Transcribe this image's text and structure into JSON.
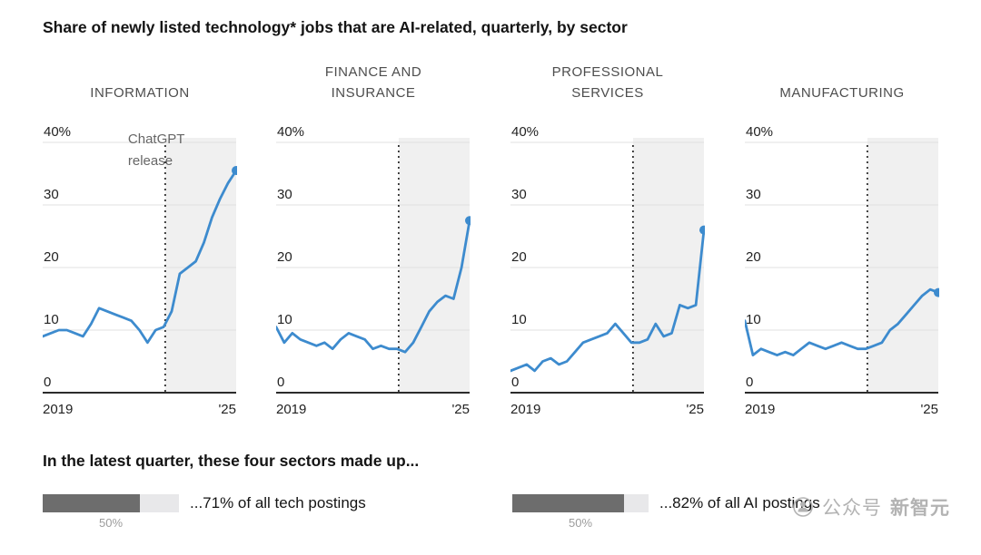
{
  "title": "Share of newly listed technology* jobs that are AI-related, quarterly, by sector",
  "colors": {
    "line": "#3d8bce",
    "end_dot": "#3d8bce",
    "post_event_shade": "#f0f0f0",
    "gridline": "#e0e0e0",
    "axis": "#2b2b2b",
    "event_line": "#1a1a1a",
    "tick_text": "#222222",
    "annotation_text": "#666666",
    "bar_fill": "#6d6d6d",
    "bar_track": "#e8e8ea"
  },
  "chart_data": {
    "type": "line",
    "title": "Share of newly listed technology* jobs that are AI-related, quarterly, by sector",
    "unit": "%",
    "ylim": [
      0,
      40
    ],
    "yticks": [
      {
        "value": 40,
        "label": "40%"
      },
      {
        "value": 30,
        "label": "30"
      },
      {
        "value": 20,
        "label": "20"
      },
      {
        "value": 10,
        "label": "10"
      },
      {
        "value": 0,
        "label": "0"
      }
    ],
    "x_axis": {
      "start_label": "2019",
      "end_label": "'25",
      "points_per_series": 25,
      "frequency": "quarterly"
    },
    "event_line": {
      "label": "ChatGPT release",
      "x_index": 15.2,
      "annotation_lines": [
        "ChatGPT",
        "release"
      ],
      "annotation_panel_index": 0
    },
    "panels": [
      {
        "title_lines": [
          "INFORMATION"
        ],
        "values": [
          9,
          9.5,
          10,
          10,
          9.5,
          9,
          11,
          13.5,
          13,
          12.5,
          12,
          11.5,
          10,
          8,
          10,
          10.5,
          13,
          19,
          20,
          21,
          24,
          28,
          31,
          33.5,
          35.5
        ],
        "end_value": 35.5
      },
      {
        "title_lines": [
          "FINANCE AND",
          "INSURANCE"
        ],
        "values": [
          10.5,
          8,
          9.5,
          8.5,
          8,
          7.5,
          8,
          7,
          8.5,
          9.5,
          9,
          8.5,
          7,
          7.5,
          7,
          7,
          6.5,
          8,
          10.5,
          13,
          14.5,
          15.5,
          15,
          20,
          27.5
        ],
        "end_value": 27.5
      },
      {
        "title_lines": [
          "PROFESSIONAL",
          "SERVICES"
        ],
        "values": [
          3.5,
          4,
          4.5,
          3.5,
          5,
          5.5,
          4.5,
          5,
          6.5,
          8,
          8.5,
          9,
          9.5,
          11,
          9.5,
          8,
          8,
          8.5,
          11,
          9,
          9.5,
          14,
          13.5,
          14,
          26
        ],
        "end_value": 26
      },
      {
        "title_lines": [
          "MANUFACTURING"
        ],
        "values": [
          11.5,
          6,
          7,
          6.5,
          6,
          6.5,
          6,
          7,
          8,
          7.5,
          7,
          7.5,
          8,
          7.5,
          7,
          7,
          7.5,
          8,
          10,
          11,
          12.5,
          14,
          15.5,
          16.5,
          16
        ],
        "end_value": 16
      }
    ]
  },
  "footer": {
    "heading": "In the latest quarter, these four sectors made up...",
    "bars": [
      {
        "percent": 71,
        "label": "...71% of all tech postings",
        "tick_label": "50%"
      },
      {
        "percent": 82,
        "label": "...82% of all AI postings",
        "tick_label": "50%"
      }
    ]
  },
  "watermark": {
    "icon": "wechat-official-account-icon",
    "account_type": "公众号",
    "account_name": "新智元"
  }
}
